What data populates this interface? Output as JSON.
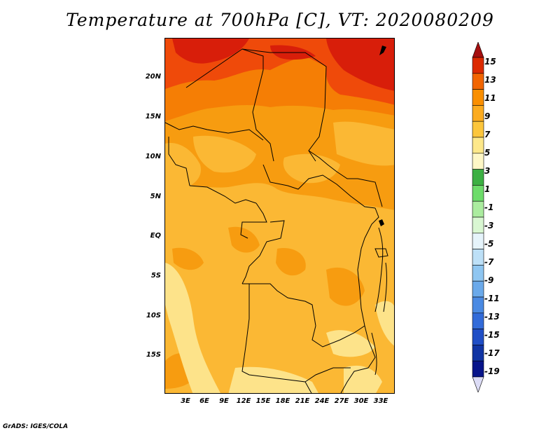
{
  "title": "Temperature at 700hPa [C], VT: 2020080209",
  "credit": "GrADS: IGES/COLA",
  "latitude_labels": [
    "20N",
    "15N",
    "10N",
    "5N",
    "EQ",
    "5S",
    "10S",
    "15S"
  ],
  "longitude_labels": [
    "3E",
    "6E",
    "9E",
    "12E",
    "15E",
    "18E",
    "21E",
    "24E",
    "27E",
    "30E",
    "33E"
  ],
  "colorbar": {
    "labels": [
      "15",
      "13",
      "11",
      "9",
      "7",
      "5",
      "3",
      "1",
      "-1",
      "-3",
      "-5",
      "-7",
      "-9",
      "-11",
      "-13",
      "-15",
      "-17",
      "-19"
    ],
    "colors_top_to_bottom": [
      "#a50f0f",
      "#dc2a00",
      "#f26500",
      "#fa8f00",
      "#fbab1f",
      "#fcc63c",
      "#fde88a",
      "#fef7c6",
      "#3cb043",
      "#6ddc6a",
      "#abec9f",
      "#d9f7d2",
      "#e6f4fb",
      "#bde0f7",
      "#8fc6f1",
      "#6aa9ea",
      "#4a8ae3",
      "#326bd9",
      "#1f4ec6",
      "#1034a4",
      "#07148a",
      "#dcdcf6"
    ]
  },
  "colors": {
    "very_hot": "#d81e0a",
    "hot": "#ef4a0a",
    "warm_orange": "#f57e05",
    "orange": "#f79c10",
    "light_orange": "#fbb834",
    "pale_yellow": "#fde38a",
    "border": "#000000"
  }
}
